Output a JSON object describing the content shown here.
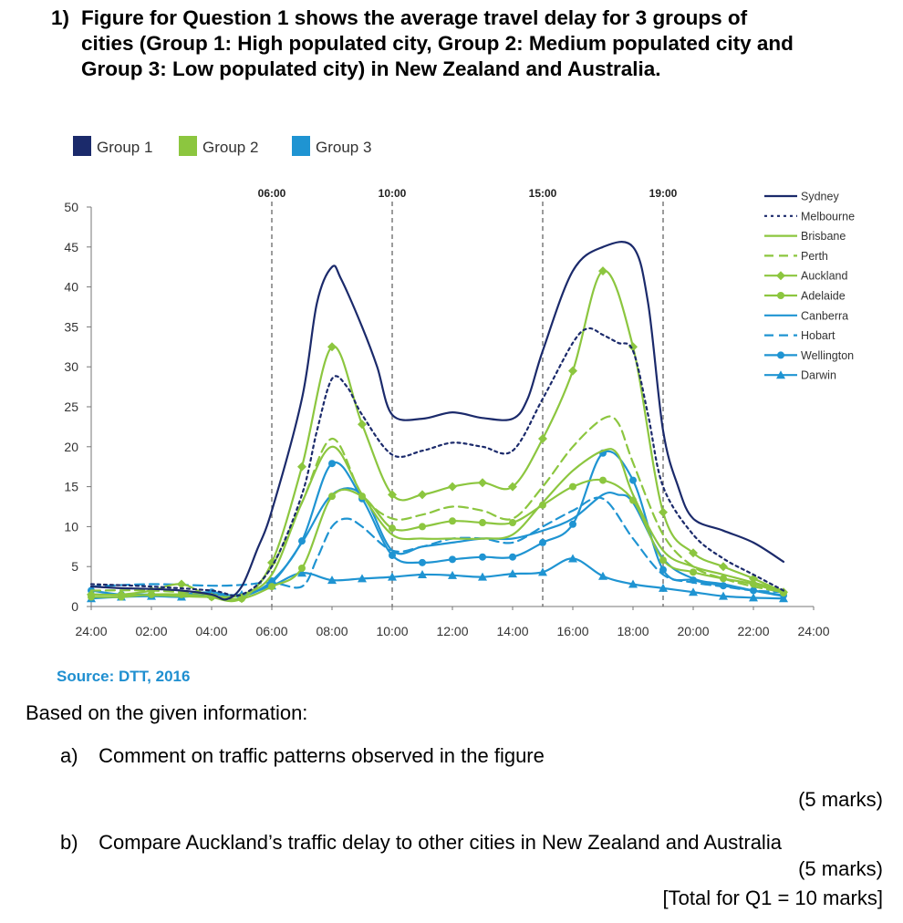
{
  "question": {
    "number": "1)",
    "title_lines": [
      "Figure for Question 1 shows the average travel delay for 3 groups of",
      "cities (Group 1: High populated city, Group 2: Medium populated city and",
      "Group 3: Low populated city) in New Zealand and Australia."
    ]
  },
  "chart_data": {
    "type": "line",
    "x_unit": "hour of day",
    "x_tick_labels": [
      "24:00",
      "02:00",
      "04:00",
      "06:00",
      "08:00",
      "10:00",
      "12:00",
      "14:00",
      "16:00",
      "18:00",
      "20:00",
      "22:00",
      "24:00"
    ],
    "x_ticks": [
      0,
      2,
      4,
      6,
      8,
      10,
      12,
      14,
      16,
      18,
      20,
      22,
      24
    ],
    "xlim": [
      0,
      24
    ],
    "ylim": [
      0,
      50
    ],
    "y_ticks": [
      0,
      5,
      10,
      15,
      20,
      25,
      30,
      35,
      40,
      45,
      50
    ],
    "grid": false,
    "markers_vertical": [
      {
        "x": 6,
        "label": "06:00"
      },
      {
        "x": 10,
        "label": "10:00"
      },
      {
        "x": 15,
        "label": "15:00"
      },
      {
        "x": 19,
        "label": "19:00"
      }
    ],
    "group_legend": [
      {
        "label": "Group 1",
        "color": "#1b2a6b"
      },
      {
        "label": "Group 2",
        "color": "#8cc63f"
      },
      {
        "label": "Group 3",
        "color": "#1f94d2"
      }
    ],
    "legend_position": "top-right",
    "series": [
      {
        "name": "Sydney",
        "color": "#1b2a6b",
        "dash": "solid",
        "marker": "none",
        "x": [
          0,
          1,
          2,
          3,
          4,
          4.5,
          5,
          5.5,
          6,
          7,
          7.5,
          8,
          8.3,
          9,
          9.5,
          10,
          11,
          12,
          13,
          14,
          14.5,
          15,
          16,
          17,
          18,
          18.5,
          19,
          19.5,
          20,
          21,
          22,
          23
        ],
        "y": [
          2.5,
          2.3,
          2.2,
          2.0,
          1.5,
          0.9,
          2.5,
          7,
          12,
          26,
          38,
          42.5,
          41,
          35,
          30,
          24,
          23.5,
          24.3,
          23.6,
          23.5,
          26,
          32,
          42,
          45,
          45,
          38,
          22,
          15,
          11,
          9.5,
          8,
          5.6
        ]
      },
      {
        "name": "Melbourne",
        "color": "#1b2a6b",
        "dash": "dot",
        "marker": "none",
        "x": [
          0,
          2,
          4,
          5,
          6,
          7,
          7.5,
          8,
          8.5,
          9,
          10,
          11,
          12,
          13,
          14,
          15,
          16,
          16.5,
          17,
          17.5,
          18,
          18.5,
          19,
          20,
          21,
          22,
          23
        ],
        "y": [
          2.8,
          2.5,
          2,
          1.5,
          5,
          14,
          22,
          28.5,
          27.5,
          24,
          19,
          19.5,
          20.5,
          20,
          19.5,
          26,
          33,
          34.8,
          34,
          33,
          32,
          24,
          15,
          9,
          6,
          4,
          2
        ]
      },
      {
        "name": "Brisbane",
        "color": "#8cc63f",
        "dash": "solid",
        "marker": "none",
        "x": [
          0,
          2,
          4,
          5,
          6,
          7,
          8,
          9,
          10,
          11,
          12,
          13,
          14,
          15,
          16,
          17,
          17.5,
          18,
          19,
          20,
          21,
          22,
          23
        ],
        "y": [
          1.5,
          1.4,
          1.2,
          1.5,
          4,
          13,
          20,
          14,
          9,
          8.5,
          8.5,
          8.5,
          9,
          13,
          17,
          19.5,
          19,
          14,
          7,
          5,
          4,
          3,
          2
        ]
      },
      {
        "name": "Perth",
        "color": "#8cc63f",
        "dash": "dash",
        "marker": "none",
        "x": [
          0,
          2,
          4,
          5,
          6,
          7,
          8,
          9,
          10,
          11,
          12,
          13,
          14,
          15,
          16,
          17,
          17.5,
          18,
          19,
          20,
          21,
          22,
          23
        ],
        "y": [
          2,
          2,
          1.5,
          1,
          5,
          13,
          21,
          14,
          11,
          11.5,
          12.5,
          12,
          11,
          15,
          20,
          23.5,
          23,
          18,
          9,
          5,
          3.5,
          2.5,
          1.8
        ]
      },
      {
        "name": "Auckland",
        "color": "#8cc63f",
        "dash": "solid",
        "marker": "diamond",
        "x": [
          0,
          1,
          2,
          3,
          4,
          5,
          6,
          7,
          8,
          9,
          10,
          11,
          12,
          13,
          14,
          15,
          16,
          17,
          18,
          19,
          20,
          21,
          22,
          23
        ],
        "y": [
          1.5,
          1.5,
          2,
          2.8,
          1.2,
          1,
          5.5,
          17.5,
          32.5,
          22.8,
          14,
          14,
          15,
          15.5,
          15,
          21,
          29.5,
          42,
          32.5,
          11.8,
          6.7,
          5,
          3.5,
          1.8
        ]
      },
      {
        "name": "Adelaide",
        "color": "#8cc63f",
        "dash": "solid",
        "marker": "circle",
        "x": [
          0,
          1,
          2,
          3,
          4,
          5,
          6,
          7,
          8,
          9,
          10,
          11,
          12,
          13,
          14,
          15,
          16,
          17,
          18,
          19,
          20,
          21,
          22,
          23
        ],
        "y": [
          1.2,
          1.2,
          1.5,
          1.5,
          1.2,
          1,
          2.5,
          4.8,
          13.8,
          13.8,
          9.8,
          10,
          10.7,
          10.5,
          10.5,
          12.7,
          15,
          15.8,
          13.3,
          5.8,
          4.3,
          3.5,
          2.8,
          1.7
        ]
      },
      {
        "name": "Canberra",
        "color": "#1f94d2",
        "dash": "solid",
        "marker": "none",
        "x": [
          0,
          2,
          4,
          5,
          6,
          7,
          8,
          9,
          10,
          11,
          12,
          13,
          14,
          15,
          16,
          17,
          17.5,
          18,
          19,
          20,
          21,
          22,
          23
        ],
        "y": [
          1.5,
          1.5,
          1.5,
          1.5,
          3,
          8,
          14,
          14,
          7,
          7.5,
          8,
          8.5,
          8.5,
          9.5,
          11,
          14,
          14,
          13,
          6,
          3.5,
          2.8,
          2,
          1.3
        ]
      },
      {
        "name": "Hobart",
        "color": "#1f94d2",
        "dash": "dash",
        "marker": "none",
        "x": [
          0,
          2,
          4,
          5,
          6,
          7,
          7.5,
          8,
          8.5,
          9,
          10,
          11,
          12,
          13,
          14,
          15,
          16,
          17,
          18,
          19,
          20,
          21,
          22,
          23
        ],
        "y": [
          2.5,
          2.8,
          2.6,
          2.7,
          3,
          2.5,
          6,
          10,
          11,
          10,
          7,
          7.5,
          8.5,
          8.5,
          8,
          10,
          12,
          13.5,
          8.5,
          4,
          3,
          2.5,
          2,
          1.8
        ]
      },
      {
        "name": "Wellington",
        "color": "#1f94d2",
        "dash": "solid",
        "marker": "circle",
        "x": [
          0,
          1,
          2,
          3,
          4,
          5,
          6,
          7,
          8,
          9,
          10,
          11,
          12,
          13,
          14,
          15,
          16,
          17,
          18,
          19,
          20,
          21,
          22,
          23
        ],
        "y": [
          2,
          1.5,
          1.5,
          1.5,
          1.8,
          1.3,
          3.2,
          8.2,
          17.9,
          13.5,
          6.4,
          5.5,
          5.9,
          6.2,
          6.2,
          8,
          10.3,
          19.2,
          15.8,
          4.6,
          3.3,
          2.6,
          2,
          1.4
        ]
      },
      {
        "name": "Darwin",
        "color": "#1f94d2",
        "dash": "solid",
        "marker": "triangle",
        "x": [
          0,
          1,
          2,
          3,
          4,
          5,
          6,
          7,
          8,
          9,
          10,
          11,
          12,
          13,
          14,
          15,
          16,
          17,
          18,
          19,
          20,
          21,
          22,
          23
        ],
        "y": [
          1,
          1.2,
          1.3,
          1.2,
          1.5,
          1.5,
          2.6,
          4.2,
          3.3,
          3.5,
          3.7,
          4,
          3.9,
          3.7,
          4.1,
          4.3,
          6,
          3.8,
          2.8,
          2.3,
          1.8,
          1.3,
          1.1,
          1
        ]
      }
    ]
  },
  "source": "Source: DTT, 2016",
  "intro": "Based on the given information:",
  "parts": [
    {
      "label": "a)",
      "text": "Comment on traffic patterns observed in the figure",
      "marks": "(5 marks)"
    },
    {
      "label": "b)",
      "text": "Compare Auckland’s traffic delay to other cities in New Zealand and Australia",
      "marks": "(5 marks)"
    }
  ],
  "total": "[Total for Q1 = 10 marks]"
}
